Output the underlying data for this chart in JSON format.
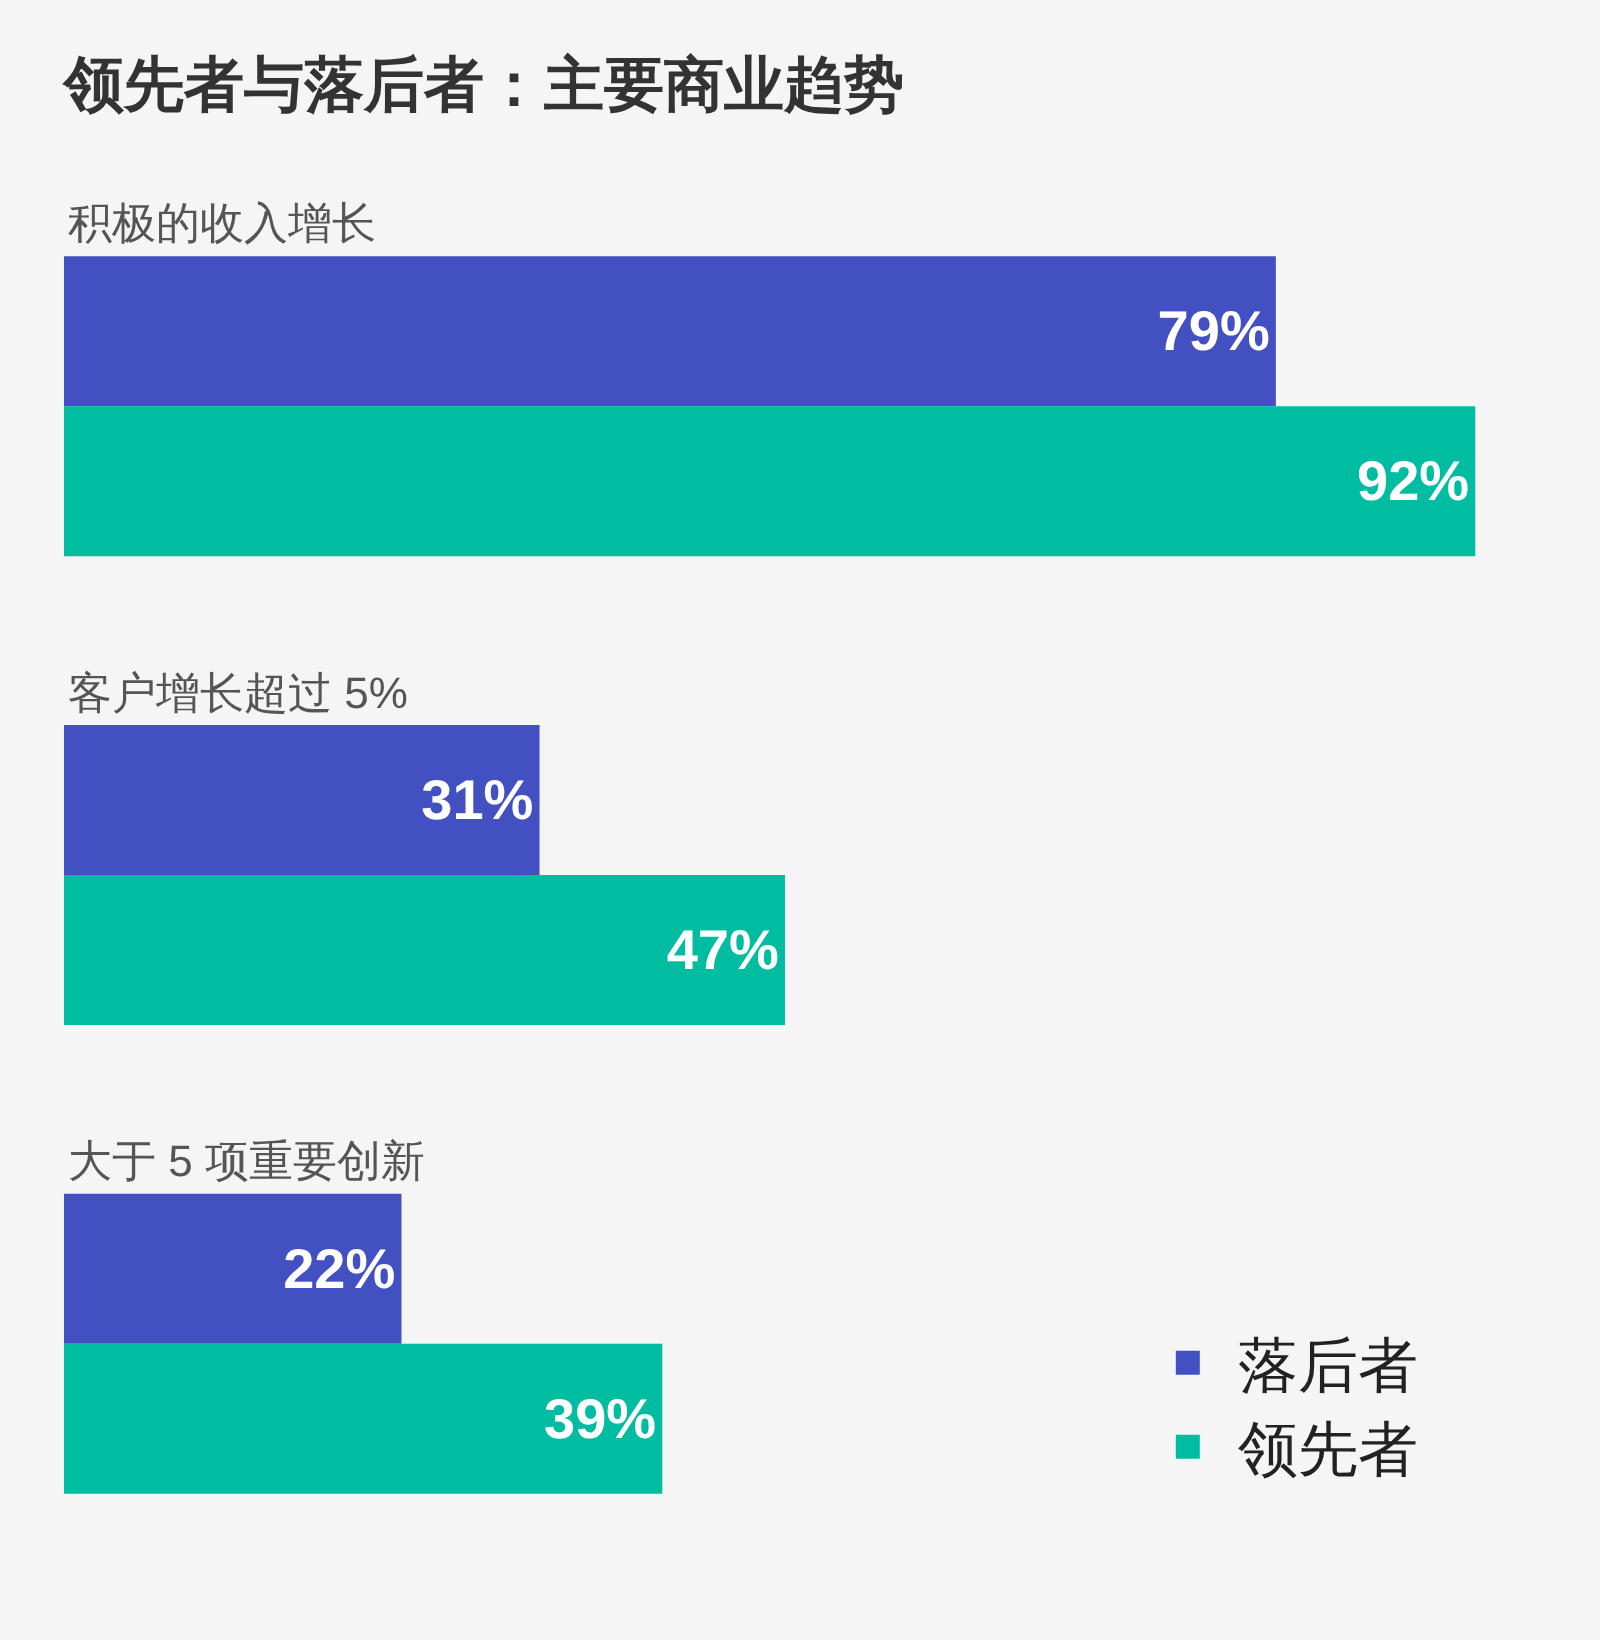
{
  "chart_data": {
    "type": "bar",
    "orientation": "horizontal",
    "title": "领先者与落后者：主要商业趋势",
    "categories": [
      "积极的收入增长",
      "客户增长超过 5%",
      "大于 5 项重要创新"
    ],
    "series": [
      {
        "name": "落后者",
        "color": "#4350c2",
        "values": [
          79,
          31,
          22
        ],
        "value_labels": [
          "79%",
          "31%",
          "22%"
        ]
      },
      {
        "name": "领先者",
        "color": "#00bca0",
        "values": [
          92,
          47,
          39
        ],
        "value_labels": [
          "92%",
          "47%",
          "39%"
        ]
      }
    ],
    "xlim": [
      0,
      100
    ],
    "tick_labels": "y",
    "grid": false,
    "legend": "bottom right"
  }
}
